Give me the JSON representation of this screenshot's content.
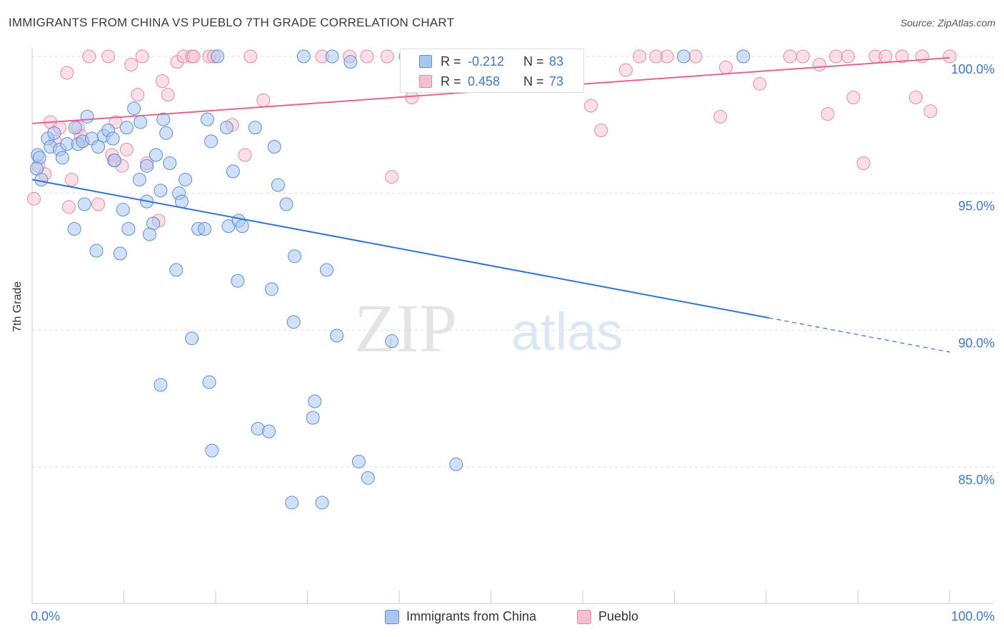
{
  "title": "IMMIGRANTS FROM CHINA VS PUEBLO 7TH GRADE CORRELATION CHART",
  "source": "Source: ZipAtlas.com",
  "watermark": {
    "part1": "ZIP",
    "part2": "atlas"
  },
  "legend_top": {
    "rows": [
      {
        "r_label": "R =",
        "r_value": "-0.212",
        "n_label": "N =",
        "n_value": "83"
      },
      {
        "r_label": "R =",
        "r_value": "0.458",
        "n_label": "N =",
        "n_value": "73"
      }
    ]
  },
  "legend_bottom": {
    "items": [
      {
        "label": "Immigrants from China"
      },
      {
        "label": "Pueblo"
      }
    ]
  },
  "colors": {
    "blue_fill": "#a9c6ee",
    "blue_stroke": "#5b8fd6",
    "blue_line": "#2f73d6",
    "pink_fill": "#f6bfd0",
    "pink_stroke": "#e48aa8",
    "pink_line": "#e0668e",
    "tick_label": "#3b78d4",
    "grid": "#dddddd",
    "axis": "#cccccc"
  },
  "chart_data": {
    "type": "scatter",
    "title": "IMMIGRANTS FROM CHINA VS PUEBLO 7TH GRADE CORRELATION CHART",
    "xlabel": "",
    "ylabel": "7th Grade",
    "xlim": [
      0,
      100
    ],
    "ylim": [
      80.5,
      100.8
    ],
    "x_tick_labels": [
      "0.0%",
      "100.0%"
    ],
    "y_ticks": [
      85,
      90,
      95,
      100
    ],
    "y_tick_labels": [
      "85.0%",
      "90.0%",
      "95.0%",
      "100.0%"
    ],
    "grid": true,
    "legend_position": "top-center",
    "series": [
      {
        "name": "Immigrants from China",
        "color": "#a9c6ee",
        "r": -0.212,
        "n": 83,
        "trend": {
          "x0": 0,
          "y0": 95.5,
          "x1": 80.3,
          "y1": 90.45,
          "dashed_to_x": 100,
          "dashed_to_y": 89.2
        },
        "points": [
          [
            0.6,
            96.4
          ],
          [
            0.8,
            96.3
          ],
          [
            0.5,
            95.9
          ],
          [
            1.0,
            95.5
          ],
          [
            1.7,
            97.0
          ],
          [
            2.0,
            96.7
          ],
          [
            2.4,
            97.2
          ],
          [
            3.0,
            96.6
          ],
          [
            3.3,
            96.3
          ],
          [
            3.8,
            96.8
          ],
          [
            4.7,
            97.4
          ],
          [
            5.0,
            96.8
          ],
          [
            5.5,
            96.9
          ],
          [
            6.0,
            97.8
          ],
          [
            6.5,
            97.0
          ],
          [
            7.2,
            96.7
          ],
          [
            7.8,
            97.1
          ],
          [
            8.3,
            97.3
          ],
          [
            8.8,
            97.0
          ],
          [
            9.0,
            96.2
          ],
          [
            10.3,
            97.4
          ],
          [
            11.1,
            98.1
          ],
          [
            11.8,
            97.6
          ],
          [
            12.5,
            96.0
          ],
          [
            13.5,
            96.4
          ],
          [
            14.3,
            97.7
          ],
          [
            14.6,
            97.2
          ],
          [
            15.0,
            96.1
          ],
          [
            16.7,
            95.5
          ],
          [
            19.1,
            97.7
          ],
          [
            19.5,
            96.9
          ],
          [
            21.2,
            97.4
          ],
          [
            21.9,
            95.8
          ],
          [
            24.3,
            97.4
          ],
          [
            26.4,
            96.7
          ],
          [
            26.8,
            95.3
          ],
          [
            27.7,
            94.6
          ],
          [
            11.7,
            95.5
          ],
          [
            14.0,
            95.1
          ],
          [
            16.0,
            95.0
          ],
          [
            16.3,
            94.7
          ],
          [
            12.5,
            94.7
          ],
          [
            5.7,
            94.6
          ],
          [
            9.9,
            94.4
          ],
          [
            4.6,
            93.7
          ],
          [
            10.5,
            93.7
          ],
          [
            13.2,
            93.9
          ],
          [
            12.8,
            93.5
          ],
          [
            18.1,
            93.7
          ],
          [
            18.8,
            93.7
          ],
          [
            21.4,
            93.8
          ],
          [
            22.5,
            94.0
          ],
          [
            22.9,
            93.8
          ],
          [
            7.0,
            92.9
          ],
          [
            9.6,
            92.8
          ],
          [
            15.7,
            92.2
          ],
          [
            28.6,
            92.7
          ],
          [
            32.1,
            92.2
          ],
          [
            22.4,
            91.8
          ],
          [
            26.1,
            91.5
          ],
          [
            17.4,
            89.7
          ],
          [
            28.5,
            90.3
          ],
          [
            33.2,
            89.8
          ],
          [
            39.2,
            89.6
          ],
          [
            14.0,
            88.0
          ],
          [
            19.3,
            88.1
          ],
          [
            30.8,
            87.4
          ],
          [
            30.6,
            86.8
          ],
          [
            24.6,
            86.4
          ],
          [
            25.8,
            86.3
          ],
          [
            19.6,
            85.6
          ],
          [
            35.6,
            85.2
          ],
          [
            36.6,
            84.6
          ],
          [
            46.2,
            85.1
          ],
          [
            28.3,
            83.7
          ],
          [
            31.6,
            83.7
          ],
          [
            20.2,
            100.0
          ],
          [
            29.6,
            100.0
          ],
          [
            32.7,
            100.0
          ],
          [
            34.7,
            99.8
          ],
          [
            40.7,
            100.0
          ],
          [
            71.0,
            100.0
          ],
          [
            77.5,
            100.0
          ]
        ]
      },
      {
        "name": "Pueblo",
        "color": "#f6bfd0",
        "r": 0.458,
        "n": 73,
        "trend": {
          "x0": 0,
          "y0": 97.55,
          "x1": 100,
          "y1": 99.95
        },
        "points": [
          [
            0.2,
            94.8
          ],
          [
            0.7,
            96.0
          ],
          [
            1.4,
            95.7
          ],
          [
            2.0,
            97.6
          ],
          [
            2.5,
            96.9
          ],
          [
            3.0,
            97.4
          ],
          [
            3.8,
            99.4
          ],
          [
            4.0,
            94.5
          ],
          [
            4.3,
            95.5
          ],
          [
            5.0,
            97.4
          ],
          [
            5.3,
            97.1
          ],
          [
            5.5,
            96.9
          ],
          [
            6.2,
            100.0
          ],
          [
            7.2,
            94.6
          ],
          [
            8.3,
            100.0
          ],
          [
            8.7,
            96.4
          ],
          [
            8.9,
            96.2
          ],
          [
            9.1,
            97.6
          ],
          [
            9.8,
            96.0
          ],
          [
            10.3,
            96.6
          ],
          [
            10.8,
            99.7
          ],
          [
            11.5,
            98.6
          ],
          [
            12.0,
            100.0
          ],
          [
            12.5,
            96.1
          ],
          [
            13.8,
            94.0
          ],
          [
            14.2,
            99.1
          ],
          [
            14.8,
            98.6
          ],
          [
            15.8,
            99.8
          ],
          [
            16.5,
            100.0
          ],
          [
            17.4,
            100.0
          ],
          [
            17.6,
            100.0
          ],
          [
            19.3,
            100.0
          ],
          [
            19.8,
            100.0
          ],
          [
            21.8,
            97.5
          ],
          [
            23.2,
            96.4
          ],
          [
            23.8,
            100.0
          ],
          [
            25.2,
            98.4
          ],
          [
            31.6,
            100.0
          ],
          [
            34.6,
            100.0
          ],
          [
            36.5,
            100.0
          ],
          [
            38.7,
            100.0
          ],
          [
            39.2,
            95.6
          ],
          [
            41.0,
            100.0
          ],
          [
            41.4,
            98.5
          ],
          [
            43.8,
            100.0
          ],
          [
            45.6,
            100.0
          ],
          [
            47.3,
            100.0
          ],
          [
            50.8,
            100.0
          ],
          [
            60.9,
            98.2
          ],
          [
            62.0,
            97.3
          ],
          [
            64.7,
            99.5
          ],
          [
            66.2,
            100.0
          ],
          [
            68.0,
            100.0
          ],
          [
            69.2,
            100.0
          ],
          [
            72.3,
            100.0
          ],
          [
            75.0,
            97.8
          ],
          [
            75.6,
            99.6
          ],
          [
            79.3,
            99.0
          ],
          [
            82.6,
            100.0
          ],
          [
            84.0,
            100.0
          ],
          [
            85.8,
            99.7
          ],
          [
            86.7,
            97.9
          ],
          [
            87.6,
            100.0
          ],
          [
            88.9,
            100.0
          ],
          [
            89.5,
            98.5
          ],
          [
            90.6,
            96.1
          ],
          [
            91.9,
            100.0
          ],
          [
            93.0,
            100.0
          ],
          [
            94.8,
            100.0
          ],
          [
            96.3,
            98.5
          ],
          [
            97.0,
            100.0
          ],
          [
            97.9,
            98.0
          ],
          [
            100.0,
            100.0
          ]
        ]
      }
    ]
  }
}
